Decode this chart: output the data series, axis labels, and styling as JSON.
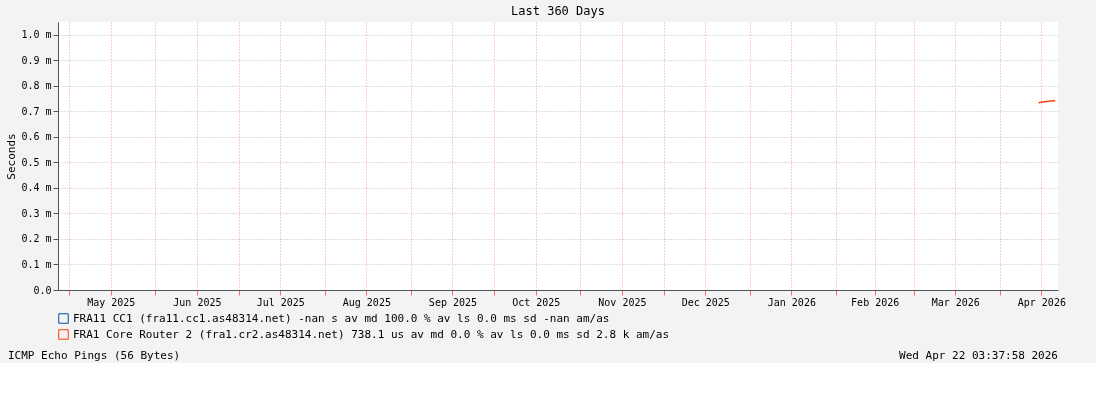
{
  "chart_data": {
    "type": "line",
    "title": "Last 360 Days",
    "ylabel": "Seconds",
    "xlim": [
      "2025-04-27",
      "2026-04-22"
    ],
    "xticks": [
      {
        "value": "2025-05-01",
        "label": null
      },
      {
        "value": "2025-05-16",
        "label": "May 2025"
      },
      {
        "value": "2025-06-01",
        "label": null
      },
      {
        "value": "2025-06-16",
        "label": "Jun 2025"
      },
      {
        "value": "2025-07-01",
        "label": null
      },
      {
        "value": "2025-07-16",
        "label": "Jul 2025"
      },
      {
        "value": "2025-08-01",
        "label": null
      },
      {
        "value": "2025-08-16",
        "label": "Aug 2025"
      },
      {
        "value": "2025-09-01",
        "label": null
      },
      {
        "value": "2025-09-16",
        "label": "Sep 2025"
      },
      {
        "value": "2025-10-01",
        "label": null
      },
      {
        "value": "2025-10-16",
        "label": "Oct 2025"
      },
      {
        "value": "2025-11-01",
        "label": null
      },
      {
        "value": "2025-11-16",
        "label": "Nov 2025"
      },
      {
        "value": "2025-12-01",
        "label": null
      },
      {
        "value": "2025-12-16",
        "label": "Dec 2025"
      },
      {
        "value": "2026-01-01",
        "label": null
      },
      {
        "value": "2026-01-16",
        "label": "Jan 2026"
      },
      {
        "value": "2026-02-01",
        "label": null
      },
      {
        "value": "2026-02-15",
        "label": "Feb 2026"
      },
      {
        "value": "2026-03-01",
        "label": null
      },
      {
        "value": "2026-03-16",
        "label": "Mar 2026"
      },
      {
        "value": "2026-04-01",
        "label": null
      },
      {
        "value": "2026-04-16",
        "label": "Apr 2026"
      }
    ],
    "ylim": [
      0,
      1.05
    ],
    "yticks": [
      {
        "value": 0,
        "label": "0.0"
      },
      {
        "value": 0.1,
        "label": "0.1 m"
      },
      {
        "value": 0.2,
        "label": "0.2 m"
      },
      {
        "value": 0.3,
        "label": "0.3 m"
      },
      {
        "value": 0.4,
        "label": "0.4 m"
      },
      {
        "value": 0.5,
        "label": "0.5 m"
      },
      {
        "value": 0.6,
        "label": "0.6 m"
      },
      {
        "value": 0.7,
        "label": "0.7 m"
      },
      {
        "value": 0.8,
        "label": "0.8 m"
      },
      {
        "value": 0.9,
        "label": "0.9 m"
      },
      {
        "value": 1.0,
        "label": "1.0 m"
      }
    ],
    "x": [
      "2026-04-15",
      "2026-04-17",
      "2026-04-19",
      "2026-04-21"
    ],
    "series": [
      {
        "name": "FRA11 CC1 (fra11.cc1.as48314.net)   -nan  s av md   100.0 % av ls    0.0 ms sd   -nan   am/as",
        "color": "#00509e",
        "values": [
          null,
          null,
          null,
          null
        ]
      },
      {
        "name": "FRA1 Core Router 2 (fra1.cr2.as48314.net)  738.1 us av md      0.0 % av ls    0.0 ms sd    2.8 k am/as",
        "color": "#ff3c00",
        "values": [
          0.734,
          0.738,
          0.74,
          0.741
        ]
      }
    ],
    "grid": true,
    "legend": "bottom",
    "marker": "none",
    "line_style": "solid",
    "annotations": [
      "ICMP Echo Pings (56 Bytes)",
      "Wed Apr 22 03:37:58 2026"
    ]
  }
}
